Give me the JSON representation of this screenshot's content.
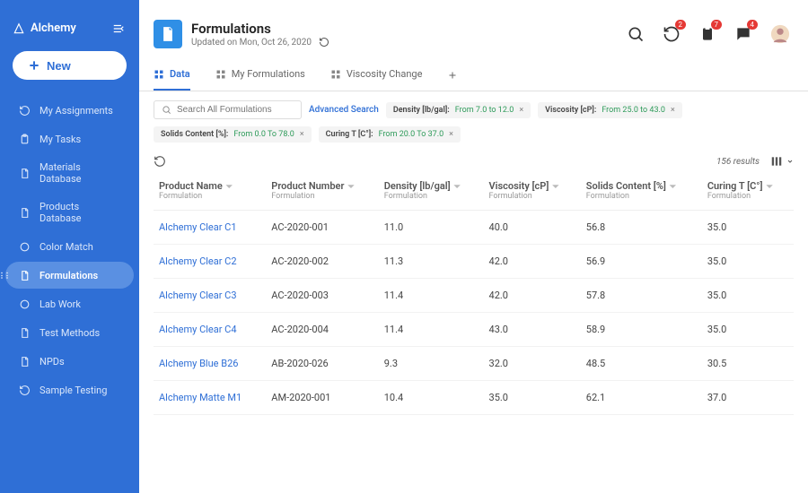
{
  "brand": {
    "name": "Alchemy"
  },
  "new_button": "New",
  "sidebar": {
    "items": [
      {
        "label": "My Assignments",
        "icon": "refresh"
      },
      {
        "label": "My Tasks",
        "icon": "clipboard"
      },
      {
        "label": "Materials Database",
        "icon": "doc"
      },
      {
        "label": "Products Database",
        "icon": "doc"
      },
      {
        "label": "Color Match",
        "icon": "circle"
      },
      {
        "label": "Formulations",
        "icon": "doc",
        "active": true
      },
      {
        "label": "Lab Work",
        "icon": "circle"
      },
      {
        "label": "Test Methods",
        "icon": "doc"
      },
      {
        "label": "NPDs",
        "icon": "doc"
      },
      {
        "label": "Sample Testing",
        "icon": "refresh"
      }
    ]
  },
  "header": {
    "title": "Formulations",
    "subtitle": "Updated on Mon, Oct 26, 2020",
    "badges": {
      "activity": "2",
      "clipboard": "7",
      "messages": "4"
    }
  },
  "tabs": [
    {
      "label": "Data",
      "icon": "grid",
      "active": true
    },
    {
      "label": "My Formulations",
      "icon": "grid"
    },
    {
      "label": "Viscosity Change",
      "icon": "grid"
    }
  ],
  "search": {
    "placeholder": "Search All Formulations",
    "advanced": "Advanced Search"
  },
  "filters": [
    {
      "name": "Density [lb/gal]",
      "value": "From 7.0 to 12.0"
    },
    {
      "name": "Viscosity [cP]",
      "value": "From 25.0 to 43.0"
    },
    {
      "name": "Solids Content [%]",
      "value": "From 0.0 To 78.0"
    },
    {
      "name": "Curing T [C°]",
      "value": "From 20.0 To 37.0"
    }
  ],
  "results_count": "156 results",
  "columns": [
    {
      "title": "Product Name",
      "sub": "Formulation"
    },
    {
      "title": "Product Number",
      "sub": "Formulation"
    },
    {
      "title": "Density [lb/gal]",
      "sub": "Formulation"
    },
    {
      "title": "Viscosity [cP]",
      "sub": "Formulation"
    },
    {
      "title": "Solids Content [%]",
      "sub": "Formulation"
    },
    {
      "title": "Curing T [C°]",
      "sub": "Formulation"
    }
  ],
  "rows": [
    {
      "name": "Alchemy Clear  C1",
      "num": "AC-2020-001",
      "density": "11.0",
      "visc": "40.0",
      "solids": "56.8",
      "curing": "35.0"
    },
    {
      "name": "Alchemy Clear  C2",
      "num": "AC-2020-002",
      "density": "11.3",
      "visc": "42.0",
      "solids": "56.9",
      "curing": "35.0"
    },
    {
      "name": "Alchemy Clear  C3",
      "num": "AC-2020-003",
      "density": "11.4",
      "visc": "42.0",
      "solids": "57.8",
      "curing": "35.0"
    },
    {
      "name": "Alchemy Clear  C4",
      "num": "AC-2020-004",
      "density": "11.4",
      "visc": "43.0",
      "solids": "58.9",
      "curing": "35.0"
    },
    {
      "name": "Alchemy Blue B26",
      "num": "AB-2020-026",
      "density": "9.3",
      "visc": "32.0",
      "solids": "48.5",
      "curing": "30.5"
    },
    {
      "name": "Alchemy Matte M1",
      "num": "AM-2020-001",
      "density": "10.4",
      "visc": "35.0",
      "solids": "62.1",
      "curing": "37.0"
    }
  ],
  "colors": {
    "sidebar_bg": "#2f6fd6",
    "accent": "#2f6fd6",
    "chip_value": "#2e9b5a",
    "badge": "#e53935"
  }
}
